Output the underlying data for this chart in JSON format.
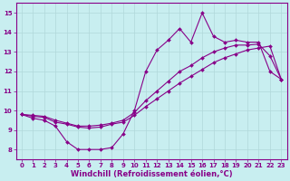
{
  "xlabel": "Windchill (Refroidissement éolien,°C)",
  "xlim": [
    -0.5,
    23.5
  ],
  "ylim": [
    7.5,
    15.5
  ],
  "xticks": [
    0,
    1,
    2,
    3,
    4,
    5,
    6,
    7,
    8,
    9,
    10,
    11,
    12,
    13,
    14,
    15,
    16,
    17,
    18,
    19,
    20,
    21,
    22,
    23
  ],
  "yticks": [
    8,
    9,
    10,
    11,
    12,
    13,
    14,
    15
  ],
  "background_color": "#c8eef0",
  "grid_color": "#b0d8da",
  "line_color": "#880088",
  "line1_x": [
    0,
    1,
    2,
    3,
    4,
    5,
    6,
    7,
    8,
    9,
    10,
    11,
    12,
    13,
    14,
    15,
    16,
    17,
    18,
    19,
    20,
    21,
    22,
    23
  ],
  "line1_y": [
    9.8,
    9.6,
    9.5,
    9.2,
    8.4,
    8.0,
    8.0,
    8.0,
    8.1,
    8.8,
    10.0,
    12.0,
    13.1,
    13.6,
    14.2,
    13.5,
    15.0,
    13.8,
    13.5,
    13.6,
    13.5,
    13.5,
    12.0,
    11.6
  ],
  "line2_x": [
    0,
    1,
    2,
    3,
    4,
    5,
    6,
    7,
    8,
    9,
    10,
    11,
    12,
    13,
    14,
    15,
    16,
    17,
    18,
    19,
    20,
    21,
    22,
    23
  ],
  "line2_y": [
    9.8,
    9.75,
    9.7,
    9.5,
    9.35,
    9.2,
    9.2,
    9.25,
    9.35,
    9.5,
    9.9,
    10.5,
    11.0,
    11.5,
    12.0,
    12.3,
    12.7,
    13.0,
    13.2,
    13.35,
    13.35,
    13.4,
    12.8,
    11.6
  ],
  "line3_x": [
    0,
    1,
    2,
    3,
    4,
    5,
    6,
    7,
    8,
    9,
    10,
    11,
    12,
    13,
    14,
    15,
    16,
    17,
    18,
    19,
    20,
    21,
    22,
    23
  ],
  "line3_y": [
    9.8,
    9.7,
    9.65,
    9.4,
    9.3,
    9.15,
    9.1,
    9.15,
    9.3,
    9.4,
    9.75,
    10.2,
    10.6,
    11.0,
    11.4,
    11.75,
    12.1,
    12.45,
    12.7,
    12.9,
    13.1,
    13.2,
    13.3,
    11.6
  ],
  "marker": "D",
  "markersize": 2.0,
  "linewidth": 0.8,
  "tick_fontsize": 5.0,
  "xlabel_fontsize": 6.0
}
